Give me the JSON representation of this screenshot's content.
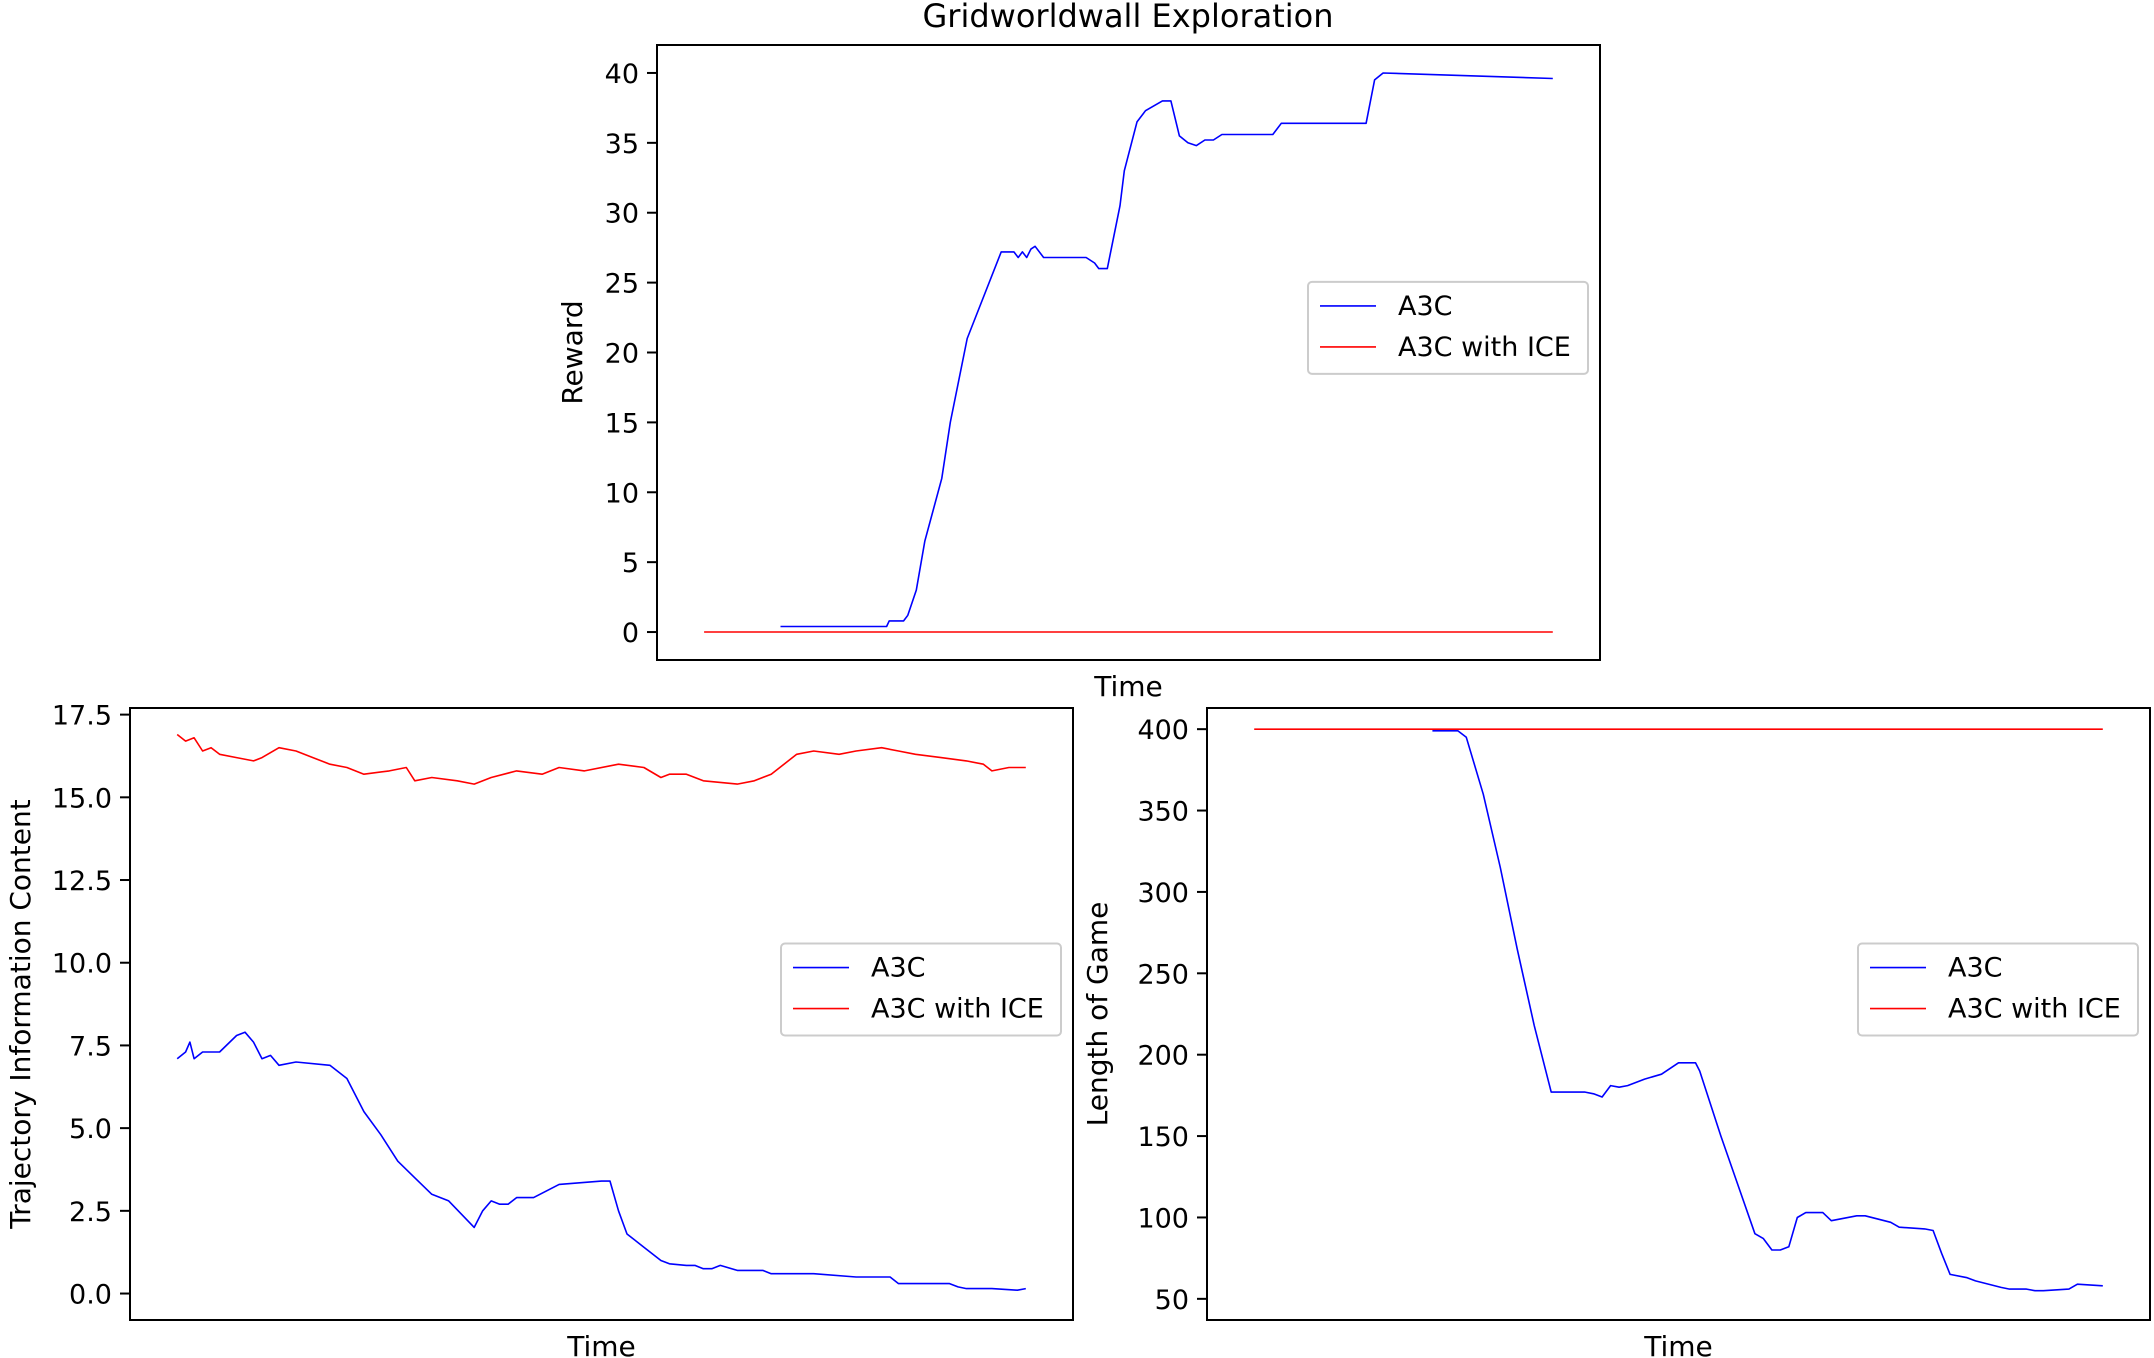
{
  "figure": {
    "title": "Gridworldwall Exploration"
  },
  "colors": {
    "a3c": "#0000ff",
    "ice": "#ff0000",
    "axis": "#000000",
    "background": "#ffffff"
  },
  "chart_data": [
    {
      "type": "line",
      "title": "Gridworldwall Exploration",
      "xlabel": "Time",
      "ylabel": "Reward",
      "xlim": [
        0,
        100
      ],
      "ylim": [
        -2,
        42
      ],
      "yticks": [
        0,
        5,
        10,
        15,
        20,
        25,
        30,
        35,
        40
      ],
      "ytick_labels": [
        "0",
        "5",
        "10",
        "15",
        "20",
        "25",
        "30",
        "35",
        "40"
      ],
      "legend_position": "center-right",
      "series": [
        {
          "name": "A3C",
          "color": "#0000ff",
          "x": [
            9,
            21.5,
            21.8,
            23.5,
            24,
            25,
            26,
            28,
            29,
            31,
            35,
            36.5,
            37,
            37.5,
            38,
            38.5,
            39,
            40,
            42,
            45,
            46,
            46.5,
            47.5,
            49,
            49.5,
            51,
            52,
            54,
            55,
            56,
            57,
            58,
            59,
            60,
            61,
            63,
            67,
            68,
            69,
            78,
            79,
            80,
            100
          ],
          "y": [
            0.4,
            0.4,
            0.8,
            0.8,
            1.2,
            3,
            6.5,
            11,
            15,
            21,
            27.2,
            27.2,
            26.8,
            27.2,
            26.8,
            27.4,
            27.6,
            26.8,
            26.8,
            26.8,
            26.4,
            26.0,
            26.0,
            30.5,
            33,
            36.5,
            37.3,
            38,
            38,
            35.5,
            35,
            34.8,
            35.2,
            35.2,
            35.6,
            35.6,
            35.6,
            36.4,
            36.4,
            36.4,
            39.5,
            40,
            39.6
          ]
        },
        {
          "name": "A3C with ICE",
          "color": "#ff0000",
          "x": [
            0,
            100
          ],
          "y": [
            0,
            0
          ]
        }
      ]
    },
    {
      "type": "line",
      "xlabel": "Time",
      "ylabel": "Trajectory Information Content",
      "xlim": [
        0,
        100
      ],
      "ylim": [
        -0.8,
        17.7
      ],
      "yticks": [
        0.0,
        2.5,
        5.0,
        7.5,
        10.0,
        12.5,
        15.0,
        17.5
      ],
      "ytick_labels": [
        "0.0",
        "2.5",
        "5.0",
        "7.5",
        "10.0",
        "12.5",
        "15.0",
        "17.5"
      ],
      "legend_position": "center-right",
      "series": [
        {
          "name": "A3C",
          "color": "#0000ff",
          "x": [
            0,
            1,
            1.5,
            2,
            3,
            5,
            7,
            8,
            9,
            10,
            11,
            12,
            14,
            18,
            20,
            22,
            24,
            26,
            28,
            30,
            32,
            35,
            36,
            37,
            38,
            39,
            40,
            42,
            45,
            50,
            51,
            52,
            53,
            55,
            57,
            58,
            60,
            61,
            62,
            63,
            64,
            66,
            69,
            70,
            71,
            75,
            80,
            84,
            85,
            91,
            92,
            93,
            96,
            99,
            100
          ],
          "y": [
            7.1,
            7.3,
            7.6,
            7.1,
            7.3,
            7.3,
            7.8,
            7.9,
            7.6,
            7.1,
            7.2,
            6.9,
            7.0,
            6.9,
            6.5,
            5.5,
            4.8,
            4.0,
            3.5,
            3.0,
            2.8,
            2.0,
            2.5,
            2.8,
            2.7,
            2.7,
            2.9,
            2.9,
            3.3,
            3.4,
            3.4,
            2.5,
            1.8,
            1.4,
            1.0,
            0.9,
            0.85,
            0.85,
            0.75,
            0.75,
            0.85,
            0.7,
            0.7,
            0.6,
            0.6,
            0.6,
            0.5,
            0.5,
            0.3,
            0.3,
            0.2,
            0.15,
            0.15,
            0.1,
            0.15
          ]
        },
        {
          "name": "A3C with ICE",
          "color": "#ff0000",
          "x": [
            0,
            1,
            2,
            3,
            4,
            5,
            7,
            9,
            10,
            12,
            14,
            16,
            18,
            20,
            22,
            25,
            27,
            28,
            30,
            33,
            35,
            37,
            40,
            43,
            45,
            48,
            52,
            55,
            57,
            58,
            60,
            62,
            66,
            68,
            70,
            73,
            75,
            78,
            80,
            83,
            85,
            87,
            90,
            93,
            95,
            96,
            98,
            100
          ],
          "y": [
            16.9,
            16.7,
            16.8,
            16.4,
            16.5,
            16.3,
            16.2,
            16.1,
            16.2,
            16.5,
            16.4,
            16.2,
            16.0,
            15.9,
            15.7,
            15.8,
            15.9,
            15.5,
            15.6,
            15.5,
            15.4,
            15.6,
            15.8,
            15.7,
            15.9,
            15.8,
            16.0,
            15.9,
            15.6,
            15.7,
            15.7,
            15.5,
            15.4,
            15.5,
            15.7,
            16.3,
            16.4,
            16.3,
            16.4,
            16.5,
            16.4,
            16.3,
            16.2,
            16.1,
            16.0,
            15.8,
            15.9,
            15.9
          ]
        }
      ]
    },
    {
      "type": "line",
      "xlabel": "Time",
      "ylabel": "Length of Game",
      "xlim": [
        0,
        100
      ],
      "ylim": [
        37,
        413
      ],
      "yticks": [
        50,
        100,
        150,
        200,
        250,
        300,
        350,
        400
      ],
      "ytick_labels": [
        "50",
        "100",
        "150",
        "200",
        "250",
        "300",
        "350",
        "400"
      ],
      "legend_position": "center-right",
      "series": [
        {
          "name": "A3C",
          "color": "#0000ff",
          "x": [
            21,
            24,
            25,
            27,
            29,
            31,
            33,
            35,
            36,
            39,
            40,
            41,
            42,
            43,
            44,
            46,
            48,
            50,
            52,
            52.5,
            55,
            57,
            59,
            60,
            61,
            62,
            63,
            64,
            65,
            67,
            68,
            71,
            72,
            75,
            76,
            79,
            80,
            81,
            82,
            84,
            85,
            88,
            89,
            91,
            92,
            93,
            96,
            97,
            100
          ],
          "y": [
            399,
            399,
            395,
            360,
            315,
            265,
            218,
            177,
            177,
            177,
            176,
            174,
            181,
            180,
            181,
            185,
            188,
            195,
            195,
            190,
            150,
            120,
            90,
            87,
            80,
            80,
            82,
            100,
            103,
            103,
            98,
            101,
            101,
            97,
            94,
            93,
            92,
            78,
            65,
            63,
            61,
            57,
            56,
            56,
            55,
            55,
            56,
            59,
            58
          ]
        },
        {
          "name": "A3C with ICE",
          "color": "#ff0000",
          "x": [
            0,
            100
          ],
          "y": [
            400,
            400
          ]
        }
      ]
    }
  ]
}
